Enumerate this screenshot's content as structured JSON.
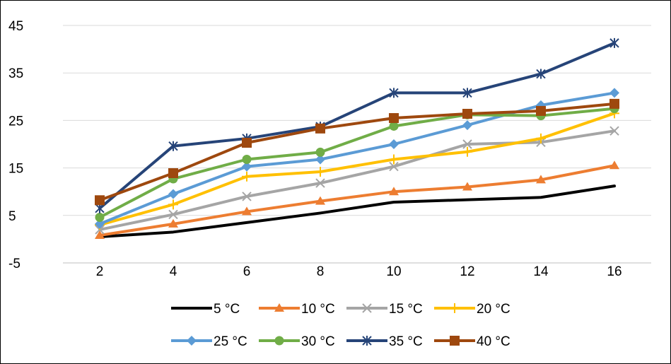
{
  "chart_data": {
    "type": "line",
    "x": [
      2,
      4,
      6,
      8,
      10,
      12,
      14,
      16
    ],
    "x_tick_labels": [
      "2",
      "4",
      "6",
      "8",
      "10",
      "12",
      "14",
      "16"
    ],
    "y_tick_labels": [
      "45",
      "35",
      "25",
      "15",
      "5",
      "-5"
    ],
    "y_ticks": [
      45,
      35,
      25,
      15,
      5,
      -5
    ],
    "ylim": [
      -5,
      45
    ],
    "grid": "horizontal",
    "legend_position": "bottom",
    "series": [
      {
        "name": "5 °C",
        "color": "#000000",
        "marker": "none",
        "values": [
          0.5,
          1.5,
          3.5,
          5.5,
          7.8,
          8.3,
          8.8,
          11.2
        ]
      },
      {
        "name": "10 °C",
        "color": "#ed7d31",
        "marker": "triangle",
        "values": [
          0.8,
          3.2,
          5.8,
          8.0,
          10.0,
          11.0,
          12.5,
          15.5
        ]
      },
      {
        "name": "15 °C",
        "color": "#a5a5a5",
        "marker": "x",
        "values": [
          2.0,
          5.2,
          9.0,
          11.8,
          15.3,
          20.0,
          20.4,
          22.8
        ]
      },
      {
        "name": "20 °C",
        "color": "#ffc000",
        "marker": "plus",
        "values": [
          3.0,
          7.3,
          13.2,
          14.2,
          16.8,
          18.4,
          21.2,
          26.5
        ]
      },
      {
        "name": "25 °C",
        "color": "#5b9bd5",
        "marker": "diamond",
        "values": [
          3.2,
          9.5,
          15.3,
          16.8,
          20.0,
          24.0,
          28.2,
          30.8
        ]
      },
      {
        "name": "30 °C",
        "color": "#70ad47",
        "marker": "circle",
        "values": [
          4.6,
          12.7,
          16.8,
          18.3,
          23.8,
          26.2,
          26.0,
          27.5
        ]
      },
      {
        "name": "35 °C",
        "color": "#264478",
        "marker": "star",
        "values": [
          6.5,
          19.6,
          21.2,
          23.7,
          30.8,
          30.8,
          34.8,
          41.3
        ]
      },
      {
        "name": "40 °C",
        "color": "#9e480e",
        "marker": "square",
        "values": [
          8.2,
          13.9,
          20.3,
          23.3,
          25.5,
          26.4,
          27.0,
          28.5
        ]
      }
    ]
  }
}
